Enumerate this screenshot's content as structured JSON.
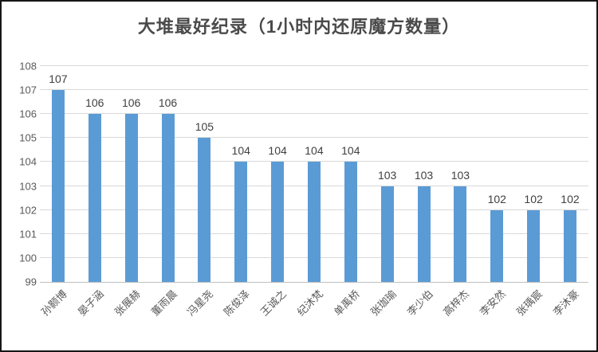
{
  "window": {
    "background": "#ffffff",
    "border_color": "#161616"
  },
  "chart_data": {
    "type": "bar",
    "title": "大堆最好纪录（1小时内还原魔方数量）",
    "categories": [
      "孙颢博",
      "晏子涵",
      "张展赫",
      "董雨晨",
      "冯星尧",
      "陈俊泽",
      "王诚之",
      "纪沐梵",
      "单禹桥",
      "张珈瑜",
      "李少伯",
      "高梓杰",
      "李安然",
      "张瑀宸",
      "李沐豪"
    ],
    "values": [
      107,
      106,
      106,
      106,
      105,
      104,
      104,
      104,
      104,
      103,
      103,
      103,
      102,
      102,
      102
    ],
    "xlabel": "",
    "ylabel": "",
    "ylim": [
      99,
      108
    ],
    "yticks": [
      99,
      100,
      101,
      102,
      103,
      104,
      105,
      106,
      107,
      108
    ],
    "grid": true,
    "legend": false,
    "data_labels_shown": true,
    "colors": {
      "bar": "#5B9BD5",
      "gridline": "#D9D9D9",
      "axis_line": "#BFBFBF",
      "data_label": "#404040",
      "tick_label": "#595959",
      "title": "#4a4a4a"
    }
  }
}
